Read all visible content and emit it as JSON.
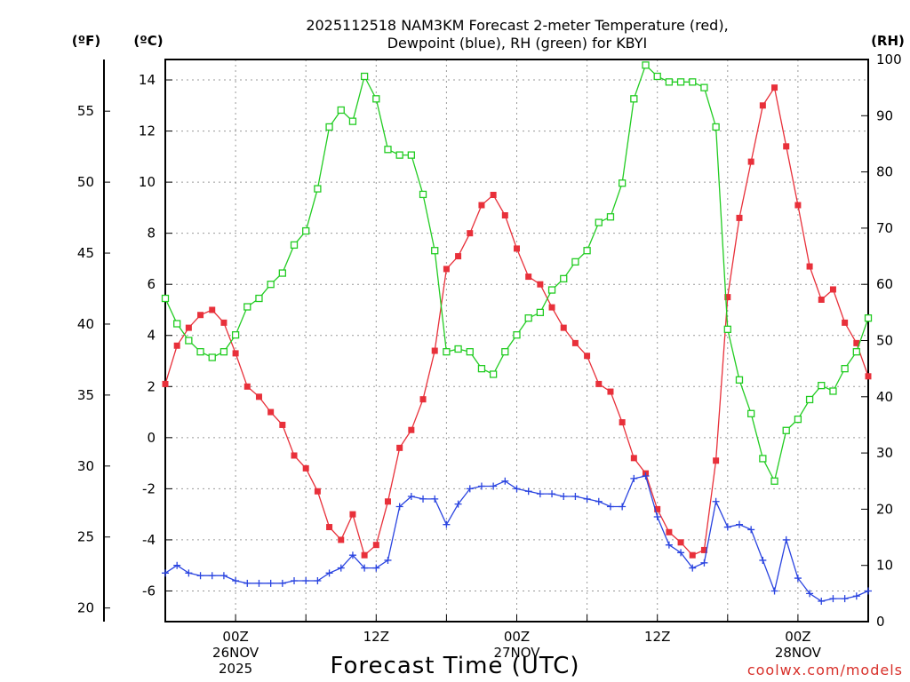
{
  "chart_data": {
    "type": "line",
    "title_line1": "2025112518 NAM3KM Forecast 2-meter Temperature (red),",
    "title_line2": "Dewpoint (blue), RH (green) for KBYI",
    "xlabel": "Forecast Time (UTC)",
    "credit": "coolwx.com/models",
    "units": {
      "fahrenheit": "(ºF)",
      "celsius": "(ºC)",
      "rh": "(RH)"
    },
    "x_hours": [
      18,
      19,
      20,
      21,
      22,
      23,
      24,
      25,
      26,
      27,
      28,
      29,
      30,
      31,
      32,
      33,
      34,
      35,
      36,
      37,
      38,
      39,
      40,
      41,
      42,
      43,
      44,
      45,
      46,
      47,
      48,
      49,
      50,
      51,
      52,
      53,
      54,
      55,
      56,
      57,
      58,
      59,
      60,
      61,
      62,
      63,
      64,
      65,
      66,
      67,
      68,
      69,
      70,
      71,
      72,
      73,
      74,
      75,
      76,
      77,
      78
    ],
    "xlim": [
      18,
      78
    ],
    "x_ticks": [
      {
        "hour": 24,
        "lines": [
          "00Z",
          "26NOV",
          "2025"
        ]
      },
      {
        "hour": 36,
        "lines": [
          "12Z"
        ]
      },
      {
        "hour": 48,
        "lines": [
          "00Z",
          "27NOV"
        ]
      },
      {
        "hour": 60,
        "lines": [
          "12Z"
        ]
      },
      {
        "hour": 72,
        "lines": [
          "00Z",
          "28NOV"
        ]
      }
    ],
    "celsius_axis": {
      "ylim": [
        -7.2,
        14.8
      ],
      "ticks": [
        "-6",
        "-4",
        "-2",
        "0",
        "2",
        "4",
        "6",
        "8",
        "10",
        "12",
        "14"
      ]
    },
    "fahrenheit_axis": {
      "ticks": [
        "20",
        "25",
        "30",
        "35",
        "40",
        "45",
        "50",
        "55"
      ]
    },
    "rh_axis": {
      "ylim": [
        0,
        100
      ],
      "ticks": [
        "0",
        "10",
        "20",
        "30",
        "40",
        "50",
        "60",
        "70",
        "80",
        "90",
        "100"
      ]
    },
    "series": [
      {
        "name": "2-meter Temperature",
        "color": "#e8303a",
        "marker": "filled-square",
        "axis": "celsius",
        "values": [
          2.1,
          3.6,
          4.3,
          4.8,
          5.0,
          4.5,
          3.3,
          2.0,
          1.6,
          1.0,
          0.5,
          -0.7,
          -1.2,
          -2.1,
          -3.5,
          -4.0,
          -3.0,
          -4.6,
          -4.2,
          -2.5,
          -0.4,
          0.3,
          1.5,
          3.4,
          6.6,
          7.1,
          8.0,
          9.1,
          9.5,
          8.7,
          7.4,
          6.3,
          6.0,
          5.1,
          4.3,
          3.7,
          3.2,
          2.1,
          1.8,
          0.6,
          -0.8,
          -1.4,
          -2.8,
          -3.7,
          -4.1,
          -4.6,
          -4.4,
          -0.9,
          5.5,
          8.6,
          10.8,
          13.0,
          13.7,
          11.4,
          9.1,
          6.7,
          5.4,
          5.8,
          4.5,
          3.7,
          2.4
        ]
      },
      {
        "name": "Dewpoint",
        "color": "#2a44e0",
        "marker": "plus",
        "axis": "celsius",
        "values": [
          -5.3,
          -5.0,
          -5.3,
          -5.4,
          -5.4,
          -5.4,
          -5.6,
          -5.7,
          -5.7,
          -5.7,
          -5.7,
          -5.6,
          -5.6,
          -5.6,
          -5.3,
          -5.1,
          -4.6,
          -5.1,
          -5.1,
          -4.8,
          -2.7,
          -2.3,
          -2.4,
          -2.4,
          -3.4,
          -2.6,
          -2.0,
          -1.9,
          -1.9,
          -1.7,
          -2.0,
          -2.1,
          -2.2,
          -2.2,
          -2.3,
          -2.3,
          -2.4,
          -2.5,
          -2.7,
          -2.7,
          -1.6,
          -1.5,
          -3.1,
          -4.2,
          -4.5,
          -5.1,
          -4.9,
          -2.5,
          -3.5,
          -3.4,
          -3.6,
          -4.8,
          -6.0,
          -4.0,
          -5.5,
          -6.1,
          -6.4,
          -6.3,
          -6.3,
          -6.2,
          -6.0
        ]
      },
      {
        "name": "RH",
        "color": "#22cc22",
        "marker": "open-square",
        "axis": "rh",
        "values": [
          57.5,
          53,
          50,
          48,
          47,
          48,
          51,
          56,
          57.5,
          60,
          62,
          67,
          69.5,
          77,
          88,
          91,
          89,
          97,
          93,
          84,
          83,
          83,
          76,
          66,
          48,
          48.5,
          48,
          45,
          44,
          48,
          51,
          54,
          55,
          59,
          61,
          64,
          66,
          71,
          72,
          78,
          93,
          99,
          97,
          96,
          96,
          96,
          95,
          88,
          52,
          43,
          37,
          29,
          25,
          34,
          36,
          39.5,
          42,
          41,
          45,
          48,
          54
        ]
      }
    ]
  }
}
